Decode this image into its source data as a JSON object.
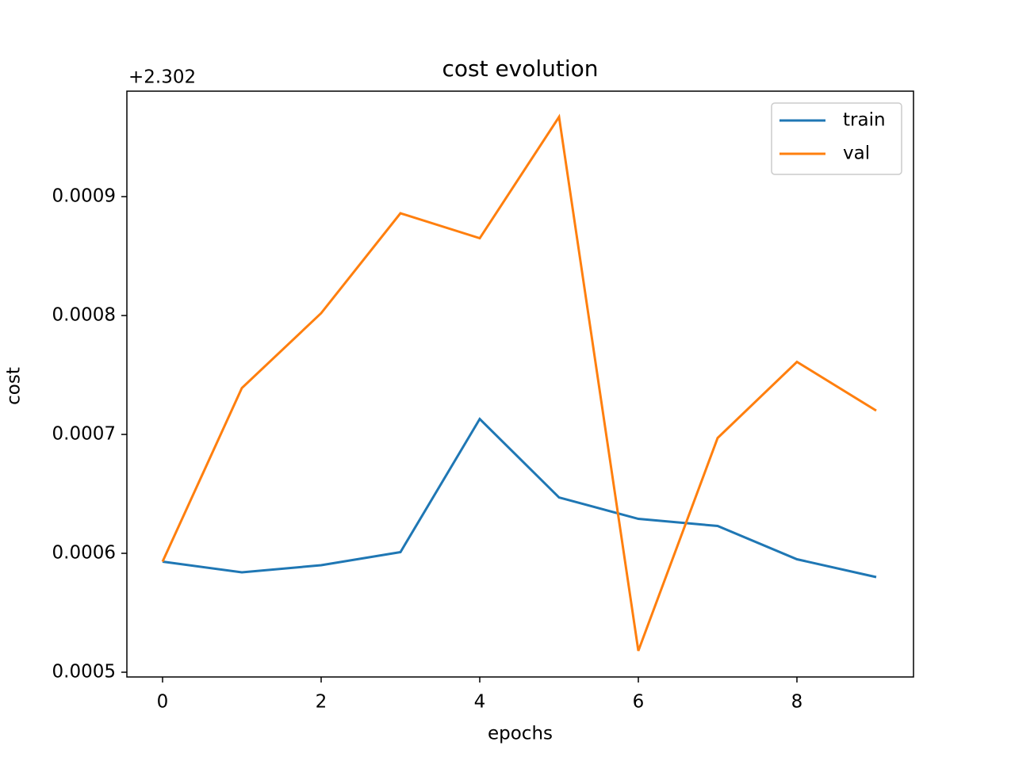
{
  "chart_data": {
    "type": "line",
    "title": "cost evolution",
    "xlabel": "epochs",
    "ylabel": "cost",
    "y_offset_text": "+2.302",
    "x": [
      0,
      1,
      2,
      3,
      4,
      5,
      6,
      7,
      8,
      9
    ],
    "series": [
      {
        "name": "train",
        "color": "#1f77b4",
        "values": [
          0.000593,
          0.000584,
          0.00059,
          0.000601,
          0.000713,
          0.000647,
          0.000629,
          0.000623,
          0.000595,
          0.00058
        ]
      },
      {
        "name": "val",
        "color": "#ff7f0e",
        "values": [
          0.000593,
          0.000739,
          0.000802,
          0.000886,
          0.000865,
          0.000967,
          0.000518,
          0.000697,
          0.000761,
          0.00072
        ]
      }
    ],
    "xlim": [
      -0.45,
      9.47
    ],
    "xticks": [
      0,
      2,
      4,
      6,
      8
    ],
    "ylim": [
      0.000496,
      0.0009887
    ],
    "yticks": [
      0.0005,
      0.0006,
      0.0007,
      0.0008,
      0.0009
    ],
    "legend": "upper right",
    "grid": false
  }
}
